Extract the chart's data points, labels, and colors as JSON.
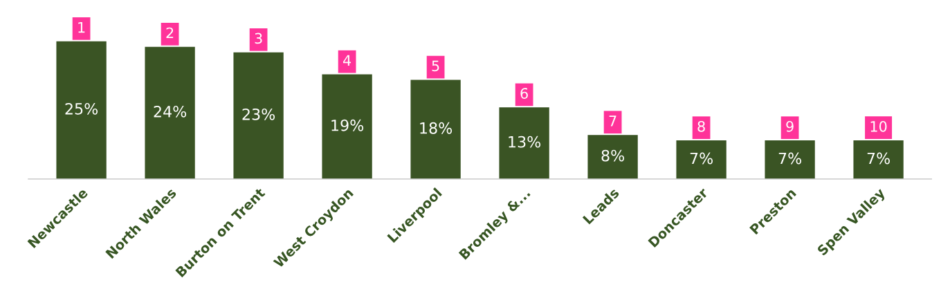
{
  "chart_data": {
    "type": "bar",
    "categories": [
      "Newcastle",
      "North Wales",
      "Burton on Trent",
      "West Croydon",
      "Liverpool",
      "Bromley &...",
      "Leads",
      "Doncaster",
      "Preston",
      "Spen Valley"
    ],
    "values": [
      25,
      24,
      23,
      19,
      18,
      13,
      8,
      7,
      7,
      7
    ],
    "value_labels": [
      "25%",
      "24%",
      "23%",
      "19%",
      "18%",
      "13%",
      "8%",
      "7%",
      "7%",
      "7%"
    ],
    "color": "#3a5424",
    "relative": false,
    "grid": false,
    "legend": false,
    "annotations": [
      {
        "text": "1",
        "x": "Newcastle",
        "y": 25
      },
      {
        "text": "2",
        "x": "North Wales",
        "y": 24
      },
      {
        "text": "3",
        "x": "Burton on Trent",
        "y": 23
      },
      {
        "text": "4",
        "x": "West Croydon",
        "y": 19
      },
      {
        "text": "5",
        "x": "Liverpool",
        "y": 18
      },
      {
        "text": "6",
        "x": "Bromley &...",
        "y": 13
      },
      {
        "text": "7",
        "x": "Leads",
        "y": 8
      },
      {
        "text": "8",
        "x": "Doncaster",
        "y": 7
      },
      {
        "text": "9",
        "x": "Preston",
        "y": 7
      },
      {
        "text": "10",
        "x": "Spen Valley",
        "y": 7
      }
    ]
  }
}
